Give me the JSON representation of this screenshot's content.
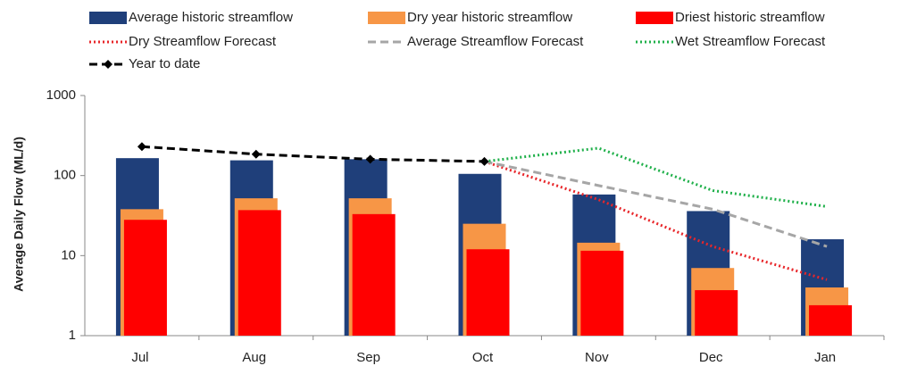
{
  "chart_data": {
    "type": "bar",
    "y_label": "Average Daily Flow (ML/d)",
    "categories": [
      "Jul",
      "Aug",
      "Sep",
      "Oct",
      "Nov",
      "Dec",
      "Jan"
    ],
    "y_scale": "log",
    "ylim": [
      1,
      1000
    ],
    "yticks": [
      1,
      10,
      100,
      1000
    ],
    "grid": false,
    "legend": "top",
    "series": [
      {
        "name": "Average historic streamflow",
        "type": "bar",
        "color": "#1f3f7a",
        "values": [
          165,
          155,
          160,
          105,
          58,
          36,
          16
        ]
      },
      {
        "name": "Dry year historic streamflow",
        "type": "bar",
        "color": "#f79646",
        "values": [
          38,
          52,
          52,
          25,
          14.5,
          7,
          4
        ]
      },
      {
        "name": "Driest historic streamflow",
        "type": "bar",
        "color": "#ff0000",
        "values": [
          28,
          37,
          33,
          12,
          11.5,
          3.7,
          2.4
        ]
      },
      {
        "name": "Dry Streamflow Forecast",
        "type": "line",
        "dash": "dotted",
        "color": "#e8262a",
        "values": [
          null,
          null,
          null,
          150,
          50,
          13,
          5
        ]
      },
      {
        "name": "Average Streamflow Forecast",
        "type": "line",
        "dash": "dashed",
        "color": "#a6a6a6",
        "values": [
          null,
          null,
          null,
          150,
          75,
          38,
          13
        ]
      },
      {
        "name": "Wet Streamflow Forecast",
        "type": "line",
        "dash": "dotted",
        "color": "#1fb04a",
        "values": [
          null,
          null,
          null,
          150,
          220,
          65,
          41
        ]
      },
      {
        "name": "Year to date",
        "type": "line",
        "dash": "dashed",
        "marker": "diamond",
        "color": "#000000",
        "values": [
          230,
          185,
          160,
          150,
          null,
          null,
          null
        ]
      }
    ]
  }
}
